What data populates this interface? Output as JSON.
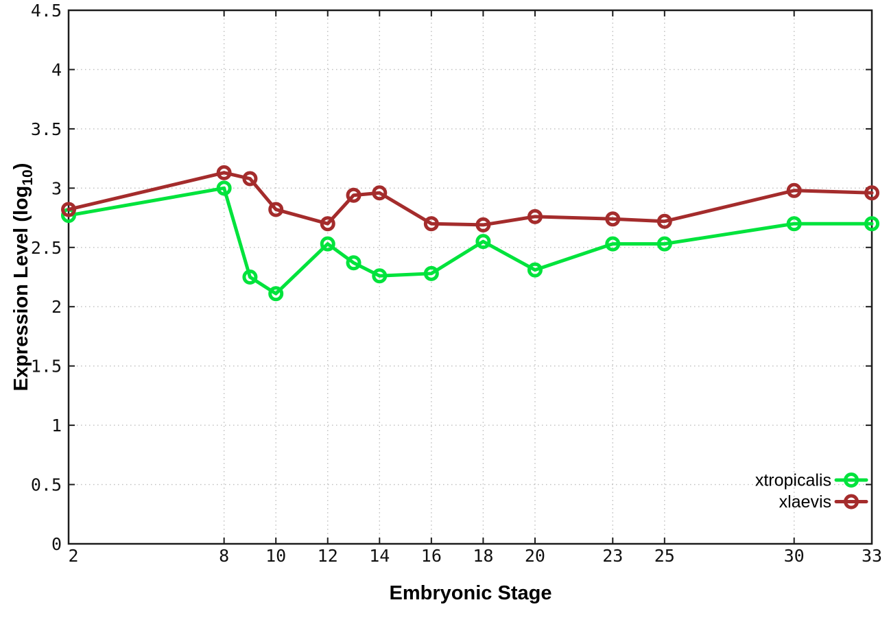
{
  "figure": {
    "background": "#ffffff",
    "border_color": "#1c1c1c",
    "grid_color": "#bdbdbd",
    "tick_color": "#1c1c1c",
    "text_color": "#111111"
  },
  "axes": {
    "xlabel": "Embryonic Stage",
    "ylabel_prefix": "Expression Level (log",
    "ylabel_sub": "10",
    "ylabel_suffix": ")"
  },
  "chart_data": {
    "type": "line",
    "title": "",
    "xlabel": "Embryonic Stage",
    "ylabel": "Expression Level (log10)",
    "x": [
      2,
      8,
      9,
      10,
      12,
      13,
      14,
      16,
      18,
      20,
      23,
      25,
      30,
      33
    ],
    "series": [
      {
        "name": "xtropicalis",
        "color": "#00e33c",
        "marker": "open-circle",
        "values": [
          2.77,
          3.0,
          2.25,
          2.11,
          2.53,
          2.37,
          2.26,
          2.28,
          2.55,
          2.31,
          2.53,
          2.53,
          2.7,
          2.7
        ]
      },
      {
        "name": "xlaevis",
        "color": "#a42c2c",
        "marker": "open-circle",
        "values": [
          2.82,
          3.13,
          3.08,
          2.82,
          2.7,
          2.94,
          2.96,
          2.7,
          2.69,
          2.76,
          2.74,
          2.72,
          2.98,
          2.96
        ]
      }
    ],
    "xticks": [
      2,
      8,
      10,
      12,
      14,
      16,
      18,
      20,
      23,
      25,
      30,
      33
    ],
    "yticks": [
      0,
      0.5,
      1,
      1.5,
      2,
      2.5,
      3,
      3.5,
      4,
      4.5
    ],
    "xlim": [
      2,
      33
    ],
    "ylim": [
      0,
      4.5
    ],
    "grid": true,
    "legend_position": "bottom-right"
  }
}
